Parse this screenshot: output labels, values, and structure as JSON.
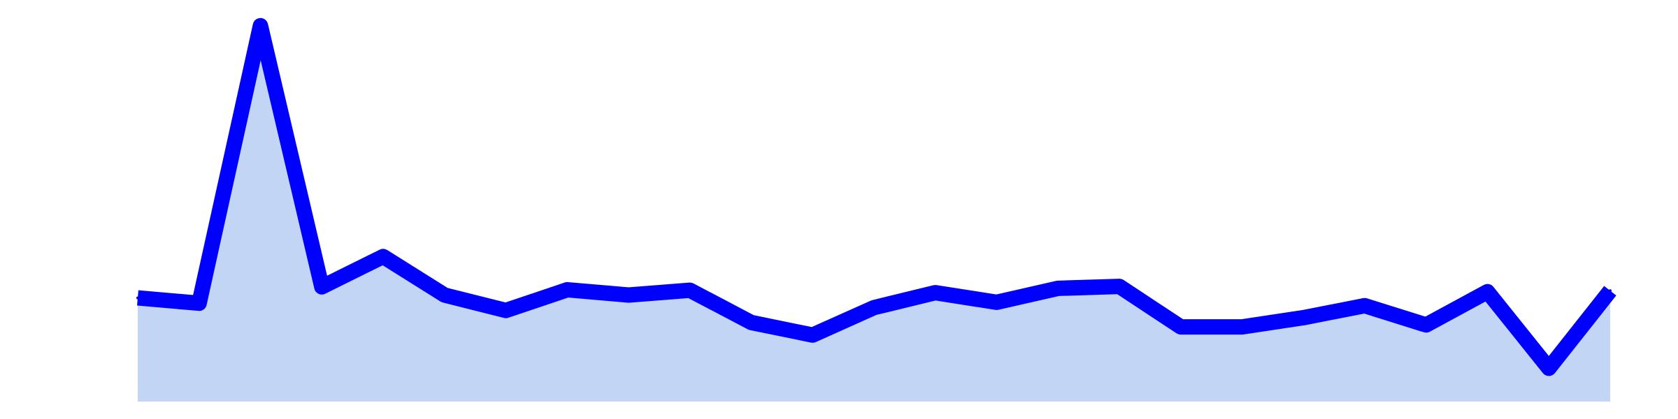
{
  "chart_data": {
    "type": "area",
    "x": [
      0,
      1,
      2,
      3,
      4,
      5,
      6,
      7,
      8,
      9,
      10,
      11,
      12,
      13,
      14,
      15,
      16,
      17,
      18,
      19,
      20,
      21,
      22,
      23,
      24
    ],
    "series": [
      {
        "values": [
          41.5,
          40.4,
          98.0,
          43.8,
          50.1,
          42.1,
          38.9,
          43.2,
          42.1,
          43.1,
          36.4,
          33.8,
          39.5,
          42.6,
          40.6,
          43.5,
          43.9,
          35.5,
          35.5,
          37.4,
          39.9,
          35.9,
          42.8,
          26.9,
          43.0
        ]
      }
    ],
    "ylim": [
      20,
      100
    ],
    "grid": false,
    "colors": {
      "line": "#0000ff",
      "fill": "#c2d5f5"
    }
  }
}
